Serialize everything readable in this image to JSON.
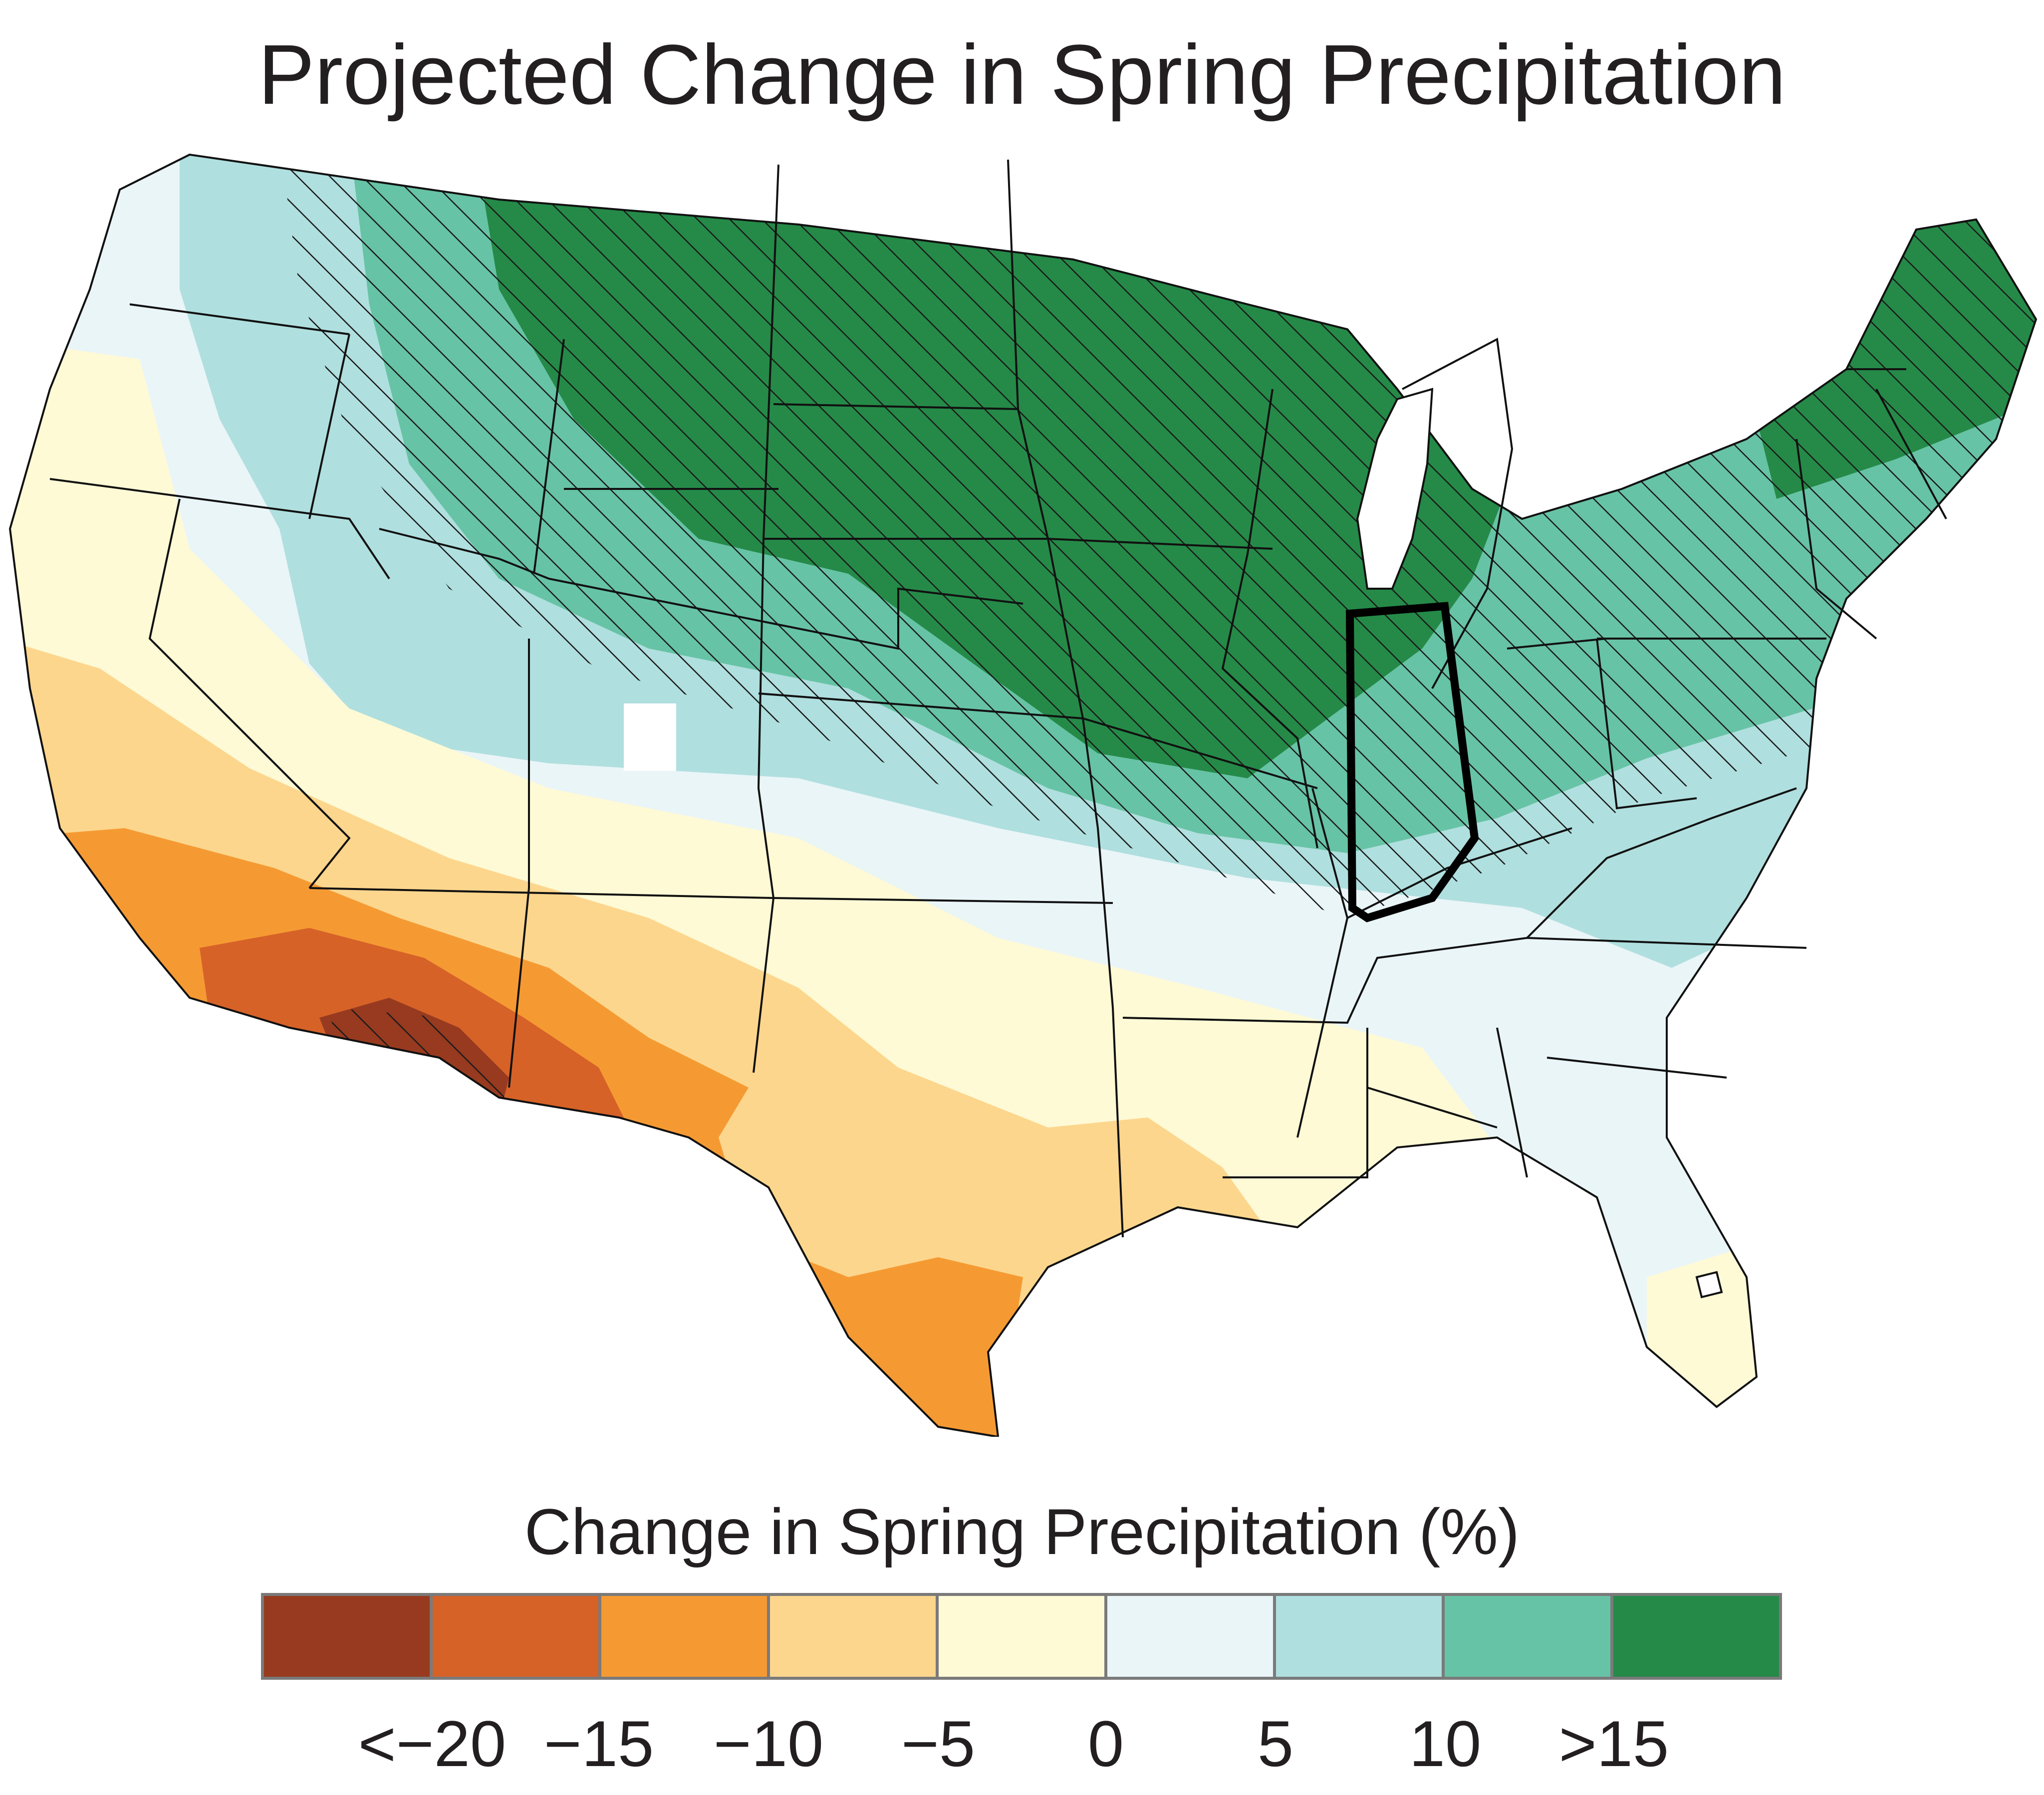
{
  "title": "Projected Change in Spring Precipitation",
  "legend": {
    "title": "Change in Spring Precipitation (%)",
    "colors": [
      "#973a1f",
      "#d66228",
      "#f59a33",
      "#fdd68d",
      "#fefad6",
      "#eaf5f8",
      "#b0dfdf",
      "#67c3a5",
      "#258a48"
    ],
    "tick_labels": [
      "<−20",
      "−15",
      "−10",
      "−5",
      "0",
      "5",
      "10",
      ">15"
    ]
  },
  "map": {
    "region": "contiguous United States",
    "highlighted_state": "Indiana",
    "hatching_meaning_shown": false,
    "bands": [
      {
        "category": ">15",
        "color": "#258a48",
        "area": "northern Plains, Upper Midwest, Great Lakes, Maine"
      },
      {
        "category": "10 to 15",
        "color": "#67c3a5",
        "area": "northern Rockies to Ohio Valley and Northeast"
      },
      {
        "category": "5 to 10",
        "color": "#b0dfdf",
        "area": "Pacific Northwest interior, central Plains, Mid-Atlantic, Carolinas"
      },
      {
        "category": "0 to 5",
        "color": "#eaf5f8",
        "area": "Northwest coast, Great Basin north, southern Plains, Southeast"
      },
      {
        "category": "-5 to 0",
        "color": "#fefad6",
        "area": "Nevada, northern California, Gulf Coast, south Florida"
      },
      {
        "category": "-10 to -5",
        "color": "#fdd68d",
        "area": "southern California, New Mexico, Texas"
      },
      {
        "category": "-15 to -10",
        "color": "#f59a33",
        "area": "southern Arizona border, south Texas"
      },
      {
        "category": "-20 to -15",
        "color": "#d66228",
        "area": "Arizona"
      },
      {
        "category": "<-20",
        "color": "#973a1f",
        "area": "southwest Arizona"
      }
    ]
  }
}
